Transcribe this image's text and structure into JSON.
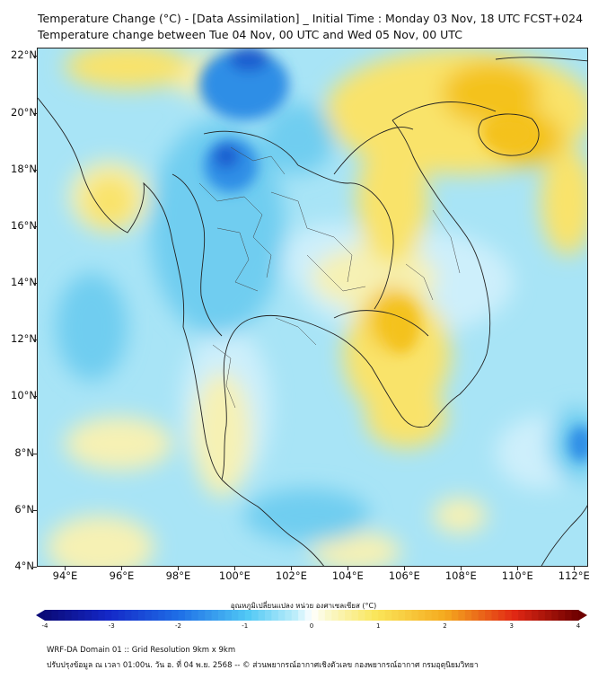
{
  "header": {
    "title_line1": "Temperature Change (°C) - [Data Assimilation] _ Initial Time : Monday 03 Nov, 18 UTC FCST+024",
    "title_line2": "Temperature change between Tue 04 Nov, 00 UTC and Wed 05 Nov, 00 UTC"
  },
  "map": {
    "lat_labels": [
      "22°N",
      "20°N",
      "18°N",
      "16°N",
      "14°N",
      "12°N",
      "10°N",
      "8°N",
      "6°N",
      "4°N"
    ],
    "lon_labels": [
      "94°E",
      "96°E",
      "98°E",
      "100°E",
      "102°E",
      "104°E",
      "106°E",
      "108°E",
      "110°E",
      "112°E"
    ],
    "lat_range": [
      4,
      22.3
    ],
    "lon_range": [
      93,
      112.5
    ],
    "colors": {
      "base": "#a8e4f6",
      "light_cyan": "#cdeffb",
      "mid_blue": "#6fcdf0",
      "dark_blue": "#2f8ee6",
      "deep_blue": "#1a5fd0",
      "pale_yellow": "#f6f1b4",
      "yellow": "#f9e36a",
      "orange": "#f4c21e",
      "border_line": "#222222"
    }
  },
  "colorbar": {
    "title": "อุณหภูมิเปลี่ยนแปลง หน่วย องศาเซลเซียส (°C)",
    "min": -4,
    "max": 4,
    "ticks": [
      "-4",
      "-3",
      "-2",
      "-1",
      "0",
      "1",
      "2",
      "3",
      "4"
    ]
  },
  "footer": {
    "line1": "WRF-DA Domain 01 :: Grid Resolution 9km x 9km",
    "line2": "ปรับปรุงข้อมูล ณ เวลา 01:00น. วัน อ. ที่ 04 พ.ย. 2568 -- © ส่วนพยากรณ์อากาศเชิงตัวเลข กองพยากรณ์อากาศ กรมอุตุนิยมวิทยา"
  }
}
